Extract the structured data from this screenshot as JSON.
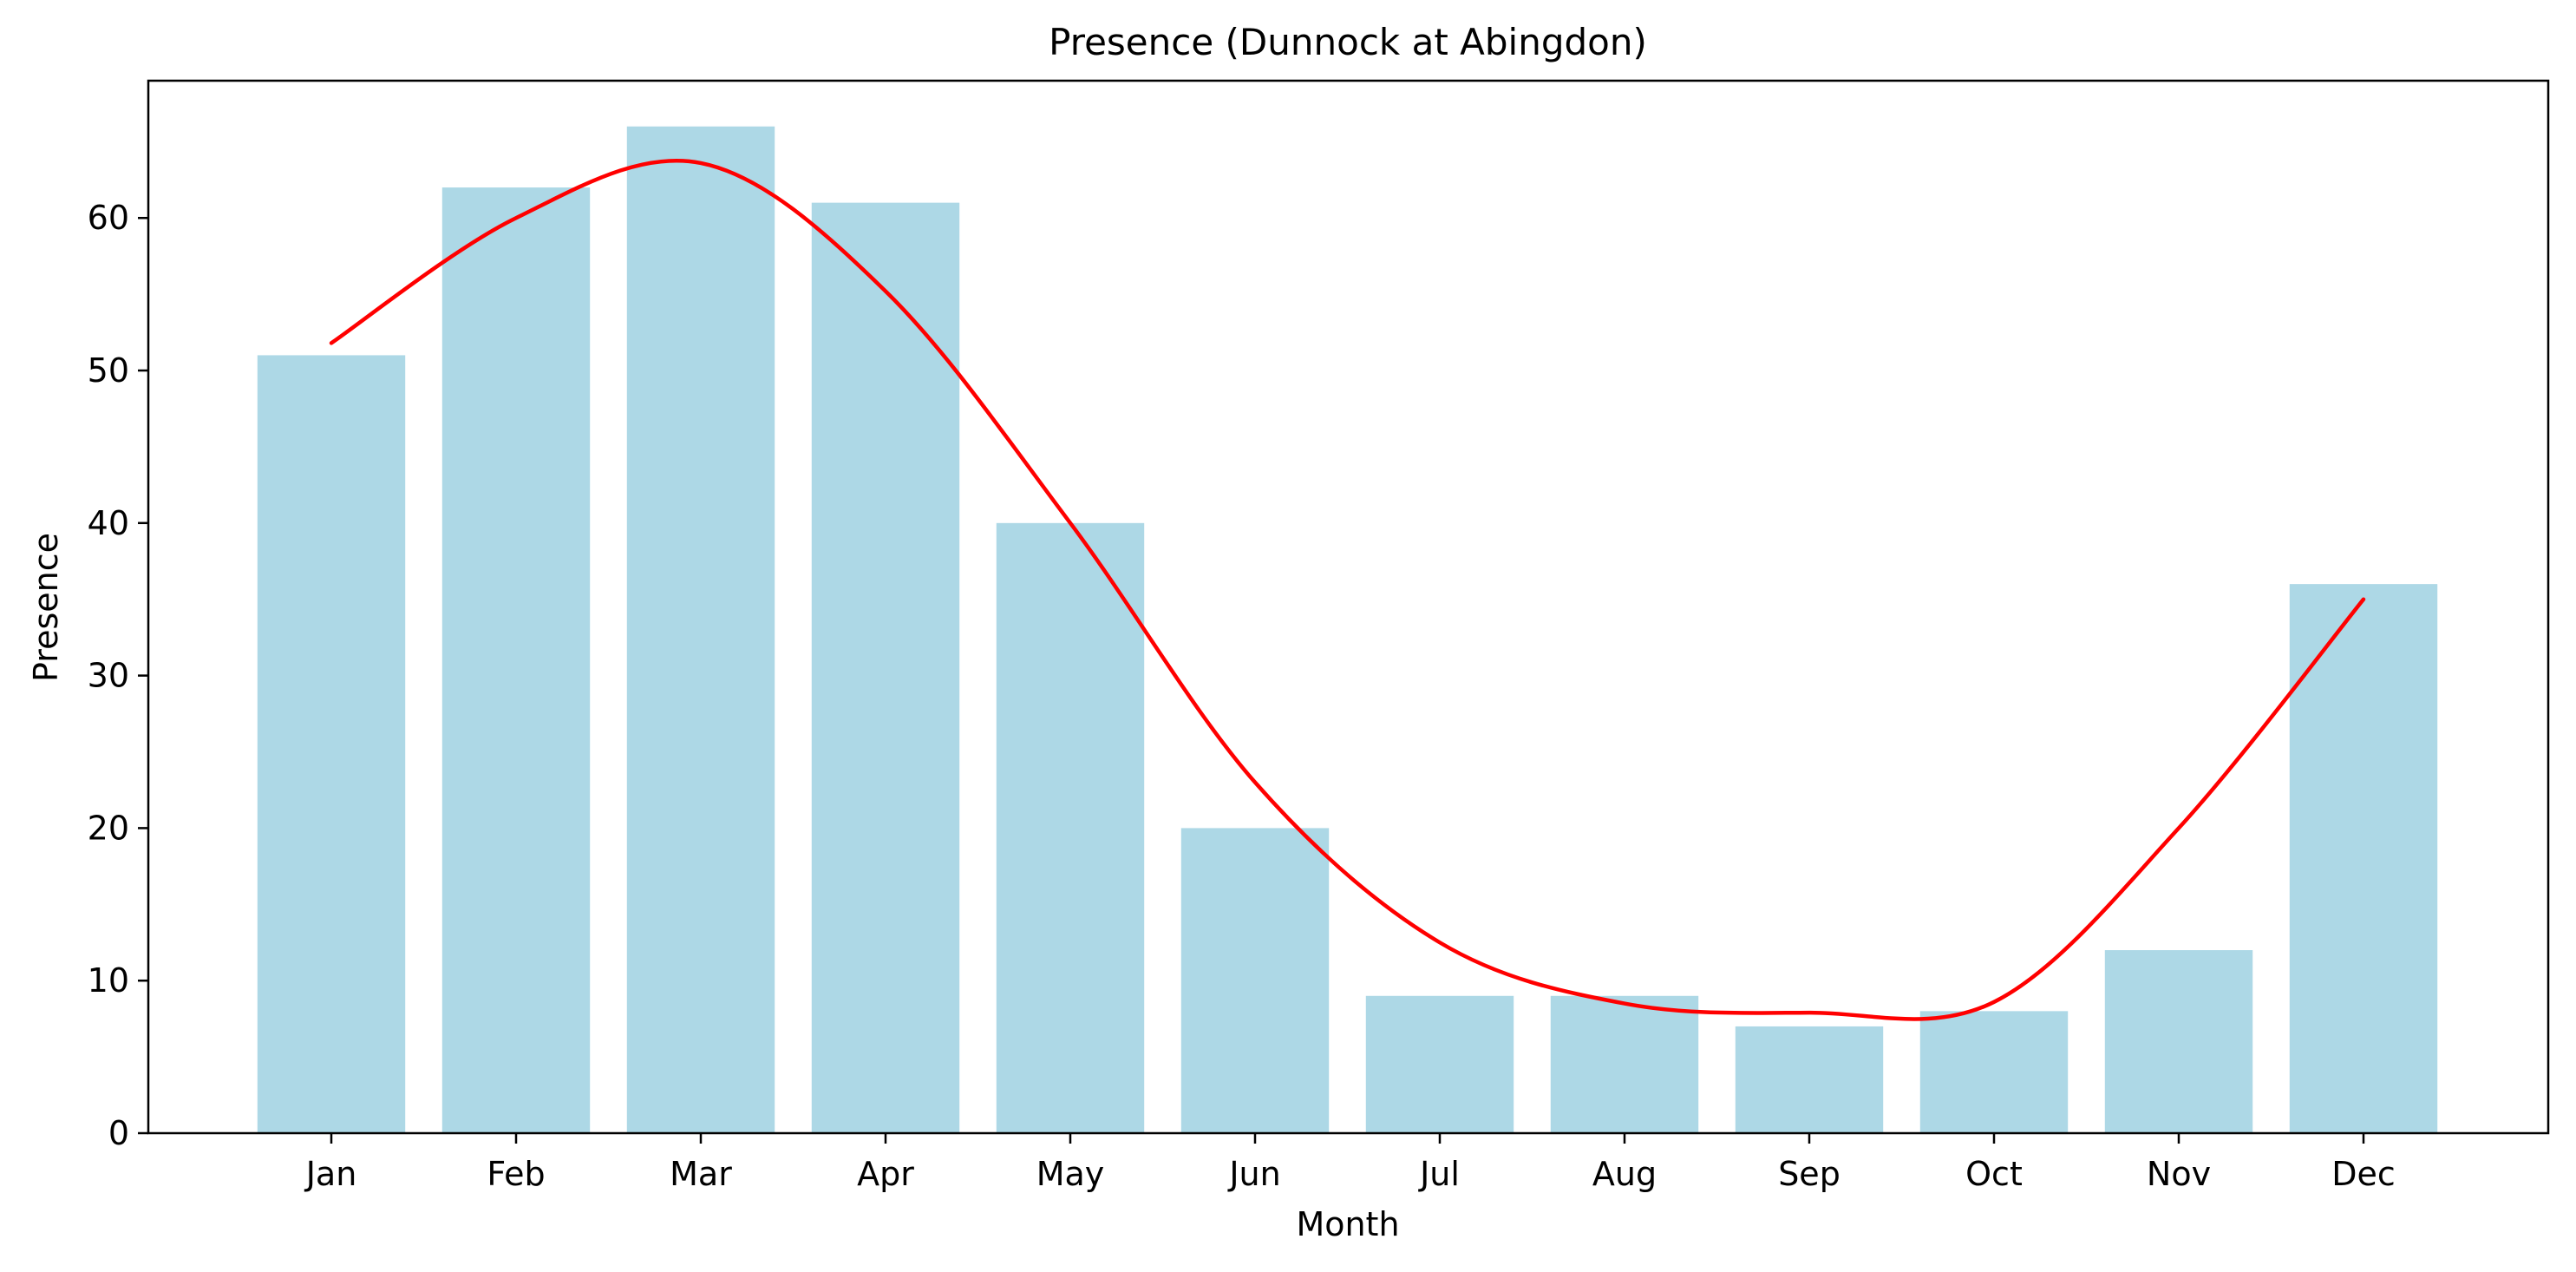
{
  "chart_data": {
    "type": "bar",
    "title": "Presence (Dunnock at Abingdon)",
    "xlabel": "Month",
    "ylabel": "Presence",
    "categories": [
      "Jan",
      "Feb",
      "Mar",
      "Apr",
      "May",
      "Jun",
      "Jul",
      "Aug",
      "Sep",
      "Oct",
      "Nov",
      "Dec"
    ],
    "ylim": [
      0,
      69
    ],
    "yticks": [
      "0",
      "10",
      "20",
      "30",
      "40",
      "50",
      "60"
    ],
    "grid": false,
    "legend": "none",
    "series": [
      {
        "type": "bar",
        "values": [
          51,
          62,
          66,
          61,
          40,
          20,
          9,
          9,
          7,
          8,
          12,
          36
        ],
        "color": "#add8e6"
      },
      {
        "type": "line",
        "smooth": true,
        "values": [
          51.8,
          60.0,
          63.6,
          55.2,
          40.0,
          23.0,
          12.5,
          8.5,
          7.9,
          8.6,
          20.0,
          35.0
        ],
        "color": "#ff0000"
      }
    ]
  }
}
